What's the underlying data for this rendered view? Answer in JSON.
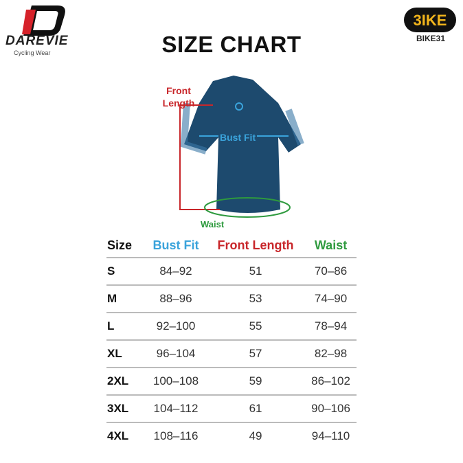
{
  "brand": {
    "logo_text": "DAREVIE",
    "tagline": "Cycling Wear"
  },
  "shop": {
    "logo_text": "BIKE",
    "name": "BIKE31"
  },
  "title": "SIZE CHART",
  "diagram": {
    "front_length": "Front Length",
    "bust_fit": "Bust Fit",
    "waist": "Waist"
  },
  "colors": {
    "bust": "#3aa3db",
    "front_length": "#c8262a",
    "waist": "#2e9a3e",
    "jersey": "#1d4a6e"
  },
  "table": {
    "headers": [
      "Size",
      "Bust Fit",
      "Front Length",
      "Waist"
    ],
    "rows": [
      [
        "S",
        "84–92",
        "51",
        "70–86"
      ],
      [
        "M",
        "88–96",
        "53",
        "74–90"
      ],
      [
        "L",
        "92–100",
        "55",
        "78–94"
      ],
      [
        "XL",
        "96–104",
        "57",
        "82–98"
      ],
      [
        "2XL",
        "100–108",
        "59",
        "86–102"
      ],
      [
        "3XL",
        "104–112",
        "61",
        "90–106"
      ],
      [
        "4XL",
        "108–116",
        "49",
        "94–110"
      ]
    ]
  }
}
